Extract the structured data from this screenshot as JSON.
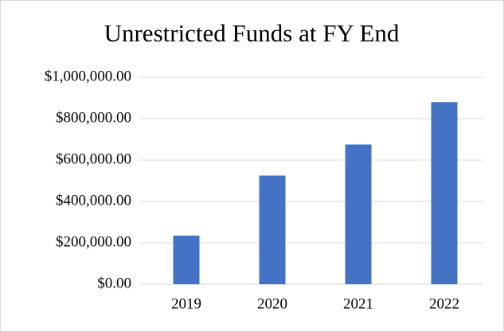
{
  "chart_data": {
    "type": "bar",
    "title": "Unrestricted Funds at FY End",
    "categories": [
      "2019",
      "2020",
      "2021",
      "2022"
    ],
    "values": [
      235000,
      525000,
      675000,
      880000
    ],
    "color": "#4472c4",
    "ylim": [
      0,
      1000000
    ],
    "yticks": [
      {
        "value": 0,
        "label": "$0.00"
      },
      {
        "value": 200000,
        "label": "$200,000.00"
      },
      {
        "value": 400000,
        "label": "$400,000.00"
      },
      {
        "value": 600000,
        "label": "$600,000.00"
      },
      {
        "value": 800000,
        "label": "$800,000.00"
      },
      {
        "value": 1000000,
        "label": "$1,000,000.00"
      }
    ],
    "grid": true
  }
}
